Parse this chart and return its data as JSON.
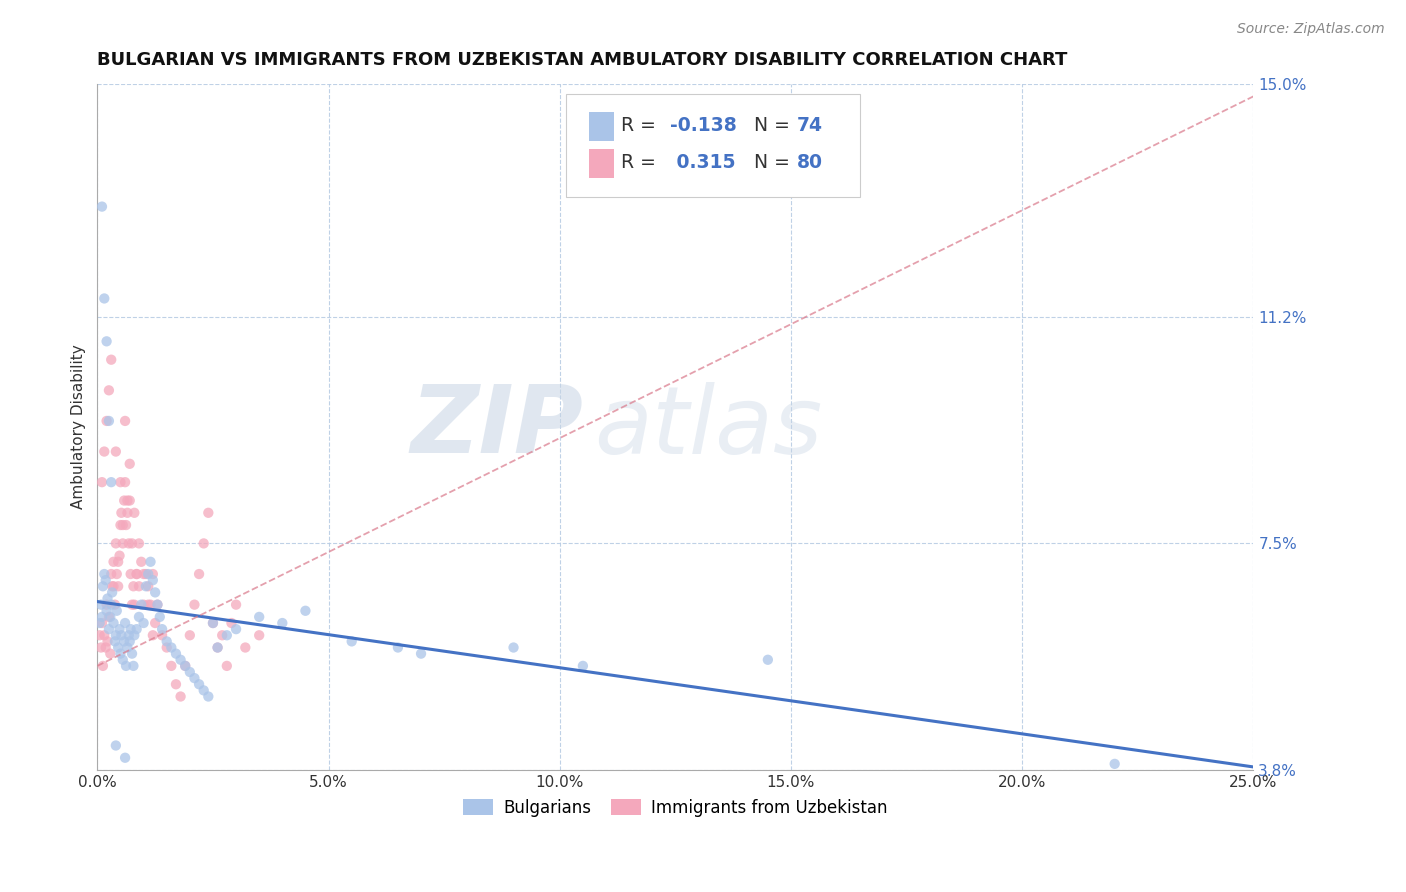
{
  "title": "BULGARIAN VS IMMIGRANTS FROM UZBEKISTAN AMBULATORY DISABILITY CORRELATION CHART",
  "source": "Source: ZipAtlas.com",
  "xlabel_ticks": [
    "0.0%",
    "5.0%",
    "10.0%",
    "15.0%",
    "20.0%",
    "25.0%"
  ],
  "xlabel_vals": [
    0.0,
    5.0,
    10.0,
    15.0,
    20.0,
    25.0
  ],
  "ylabel": "Ambulatory Disability",
  "ylabel_ticks": [
    3.8,
    7.5,
    11.2,
    15.0
  ],
  "ylabel_tick_labels": [
    "3.8%",
    "7.5%",
    "11.2%",
    "15.0%"
  ],
  "xlim": [
    0.0,
    25.0
  ],
  "ylim": [
    3.8,
    15.0
  ],
  "blue_color": "#aac4e8",
  "pink_color": "#f4a8bc",
  "trend_blue": "#4472c4",
  "trend_pink": "#d9788a",
  "watermark_zip": "ZIP",
  "watermark_atlas": "atlas",
  "bg_color": "#ffffff",
  "bulgarians_x": [
    0.05,
    0.08,
    0.1,
    0.12,
    0.15,
    0.18,
    0.2,
    0.22,
    0.25,
    0.28,
    0.3,
    0.32,
    0.35,
    0.38,
    0.4,
    0.42,
    0.45,
    0.48,
    0.5,
    0.52,
    0.55,
    0.58,
    0.6,
    0.62,
    0.65,
    0.68,
    0.7,
    0.72,
    0.75,
    0.78,
    0.8,
    0.85,
    0.9,
    0.95,
    1.0,
    1.05,
    1.1,
    1.15,
    1.2,
    1.25,
    1.3,
    1.35,
    1.4,
    1.5,
    1.6,
    1.7,
    1.8,
    1.9,
    2.0,
    2.1,
    2.2,
    2.3,
    2.4,
    2.5,
    2.6,
    2.8,
    3.0,
    3.5,
    4.0,
    4.5,
    5.5,
    6.5,
    7.0,
    9.0,
    10.5,
    14.5,
    22.0,
    0.1,
    0.15,
    0.2,
    0.25,
    0.3,
    0.4,
    0.6
  ],
  "bulgarians_y": [
    6.2,
    6.5,
    6.3,
    6.8,
    7.0,
    6.9,
    6.4,
    6.6,
    6.1,
    6.3,
    6.5,
    6.7,
    6.2,
    5.9,
    6.0,
    6.4,
    5.8,
    6.1,
    5.7,
    6.0,
    5.6,
    5.9,
    6.2,
    5.5,
    5.8,
    6.0,
    5.9,
    6.1,
    5.7,
    5.5,
    6.0,
    6.1,
    6.3,
    6.5,
    6.2,
    6.8,
    7.0,
    7.2,
    6.9,
    6.7,
    6.5,
    6.3,
    6.1,
    5.9,
    5.8,
    5.7,
    5.6,
    5.5,
    5.4,
    5.3,
    5.2,
    5.1,
    5.0,
    6.2,
    5.8,
    6.0,
    6.1,
    6.3,
    6.2,
    6.4,
    5.9,
    5.8,
    5.7,
    5.8,
    5.5,
    5.6,
    3.9,
    13.0,
    11.5,
    10.8,
    9.5,
    8.5,
    4.2,
    4.0
  ],
  "uzbek_x": [
    0.05,
    0.08,
    0.1,
    0.12,
    0.15,
    0.18,
    0.2,
    0.22,
    0.25,
    0.28,
    0.3,
    0.32,
    0.35,
    0.38,
    0.4,
    0.42,
    0.45,
    0.48,
    0.5,
    0.52,
    0.55,
    0.58,
    0.6,
    0.62,
    0.65,
    0.68,
    0.7,
    0.72,
    0.75,
    0.78,
    0.8,
    0.85,
    0.9,
    0.95,
    1.0,
    1.05,
    1.1,
    1.15,
    1.2,
    1.25,
    1.3,
    1.4,
    1.5,
    1.6,
    1.7,
    1.8,
    1.9,
    2.0,
    2.1,
    2.2,
    2.3,
    2.4,
    2.5,
    2.6,
    2.7,
    2.8,
    2.9,
    3.0,
    3.2,
    3.5,
    0.1,
    0.15,
    0.2,
    0.25,
    0.3,
    0.4,
    0.5,
    0.6,
    0.7,
    0.8,
    0.9,
    1.0,
    1.1,
    1.2,
    0.35,
    0.45,
    0.55,
    0.65,
    0.75,
    0.85
  ],
  "uzbek_y": [
    6.0,
    5.8,
    6.2,
    5.5,
    6.0,
    5.8,
    6.5,
    5.9,
    6.3,
    5.7,
    7.0,
    6.8,
    7.2,
    6.5,
    7.5,
    7.0,
    6.8,
    7.3,
    7.8,
    8.0,
    7.5,
    8.2,
    8.5,
    7.8,
    8.0,
    7.5,
    8.2,
    7.0,
    7.5,
    6.8,
    6.5,
    7.0,
    6.8,
    7.2,
    6.5,
    7.0,
    6.8,
    6.5,
    7.0,
    6.2,
    6.5,
    6.0,
    5.8,
    5.5,
    5.2,
    5.0,
    5.5,
    6.0,
    6.5,
    7.0,
    7.5,
    8.0,
    6.2,
    5.8,
    6.0,
    5.5,
    6.2,
    6.5,
    5.8,
    6.0,
    8.5,
    9.0,
    9.5,
    10.0,
    10.5,
    9.0,
    8.5,
    9.5,
    8.8,
    8.0,
    7.5,
    7.0,
    6.5,
    6.0,
    6.8,
    7.2,
    7.8,
    8.2,
    6.5,
    7.0
  ]
}
